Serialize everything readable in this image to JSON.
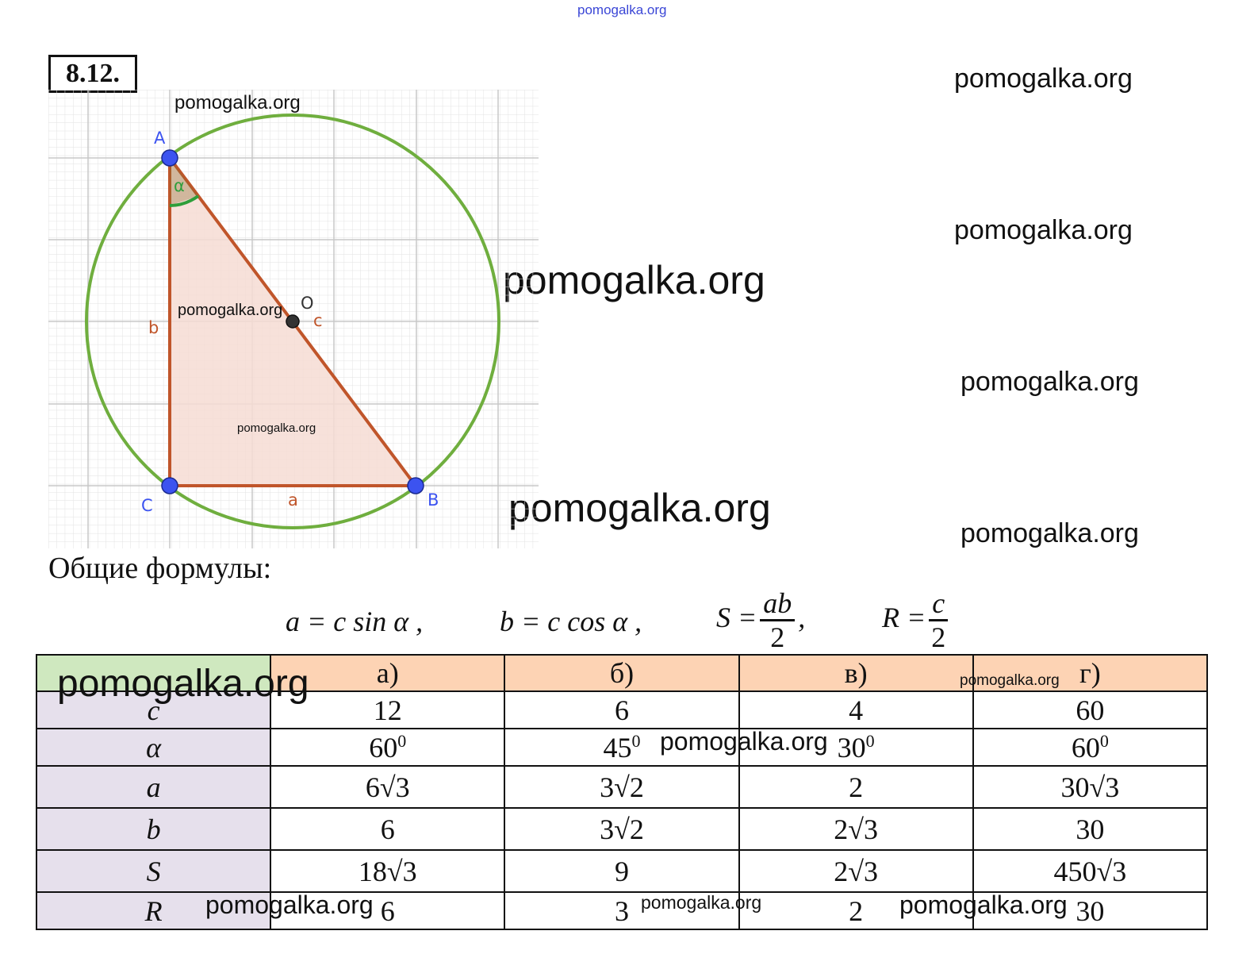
{
  "watermark": "pomogalka.org",
  "task_number": "8.12.",
  "figure": {
    "labels": {
      "A": "A",
      "B": "B",
      "C": "C",
      "O": "O",
      "a": "a",
      "b": "b",
      "c": "c",
      "alpha": "α"
    },
    "colors": {
      "grid": "#cfcfcf",
      "circle": "#6fae3e",
      "triangle_fill": "#f6dcd3",
      "sides": "#c0552a",
      "points": "#3c53f0",
      "angle_arc": "#2e9e3a"
    }
  },
  "heading": "Общие формулы:",
  "formulas": {
    "f1": "a = c sin α ,",
    "f2": "b = c cos α ,",
    "f3_lhs": "S =",
    "f3_num": "ab",
    "f3_den": "2",
    "f3_tail": ",",
    "f4_lhs": "R =",
    "f4_num": "c",
    "f4_den": "2"
  },
  "table": {
    "columns": [
      "а)",
      "б)",
      "в)",
      "г)"
    ],
    "rows": [
      {
        "label": "c",
        "values": [
          "12",
          "6",
          "4",
          "60"
        ]
      },
      {
        "label": "α",
        "values": [
          "60",
          "45",
          "30",
          "60"
        ],
        "sup": "0"
      },
      {
        "label": "a",
        "values": [
          "6√3",
          "3√2",
          "2",
          "30√3"
        ]
      },
      {
        "label": "b",
        "values": [
          "6",
          "3√2",
          "2√3",
          "30"
        ]
      },
      {
        "label": "S",
        "values": [
          "18√3",
          "9",
          "2√3",
          "450√3"
        ]
      },
      {
        "label": "R",
        "values": [
          "6",
          "3",
          "2",
          "30"
        ]
      }
    ],
    "colors": {
      "header": "#fdd3b4",
      "corner": "#cfe8bf",
      "labels": "#e6e0ec"
    }
  }
}
